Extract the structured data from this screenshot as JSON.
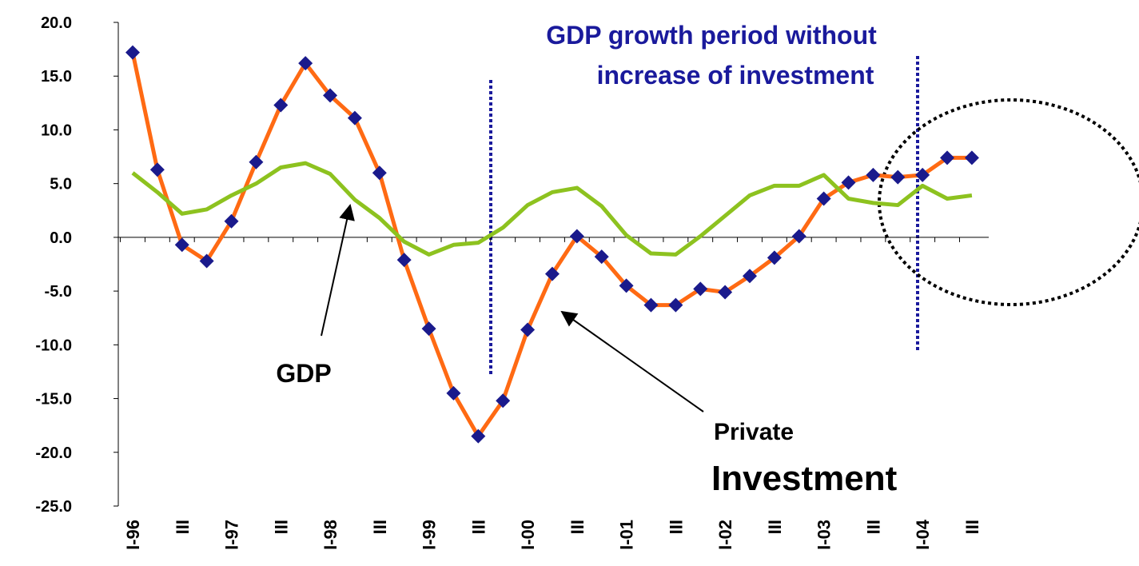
{
  "chart_data": {
    "type": "line",
    "annotations": [
      "GDP growth period without",
      "increase of investment",
      "GDP",
      "Private",
      "Investment"
    ],
    "categories": [
      "I-96",
      null,
      "III",
      null,
      "I-97",
      null,
      "III",
      null,
      "I-98",
      null,
      "III",
      null,
      "I-99",
      null,
      "III",
      null,
      "I-00",
      null,
      "III",
      null,
      "I-01",
      null,
      "III",
      null,
      "I-02",
      null,
      "III",
      null,
      "I-03",
      null,
      "III",
      null,
      "I-04",
      null,
      "III"
    ],
    "series": [
      {
        "name": "Private Investment",
        "color": "#ff6a13",
        "marker_color": "#1a1a8c",
        "values": [
          17.2,
          6.3,
          -0.7,
          -2.2,
          1.5,
          7.0,
          12.3,
          16.2,
          13.2,
          11.1,
          6.0,
          -2.1,
          -8.5,
          -14.5,
          -18.5,
          -15.2,
          -8.6,
          -3.4,
          0.1,
          -1.8,
          -4.5,
          -6.3,
          -6.3,
          -4.8,
          -5.1,
          -3.6,
          -1.9,
          0.1,
          3.6,
          5.1,
          5.8,
          5.6,
          5.8,
          7.4,
          7.4
        ]
      },
      {
        "name": "GDP",
        "color": "#8dc21f",
        "values": [
          6.0,
          4.2,
          2.2,
          2.6,
          3.9,
          5.0,
          6.5,
          6.9,
          5.9,
          3.5,
          1.8,
          -0.4,
          -1.6,
          -0.7,
          -0.5,
          0.9,
          3.0,
          4.2,
          4.6,
          2.9,
          0.2,
          -1.5,
          -1.6,
          0.1,
          2.0,
          3.9,
          4.8,
          4.8,
          5.8,
          3.6,
          3.2,
          3.0,
          4.8,
          3.6,
          3.9
        ]
      }
    ],
    "ylim": [
      -25,
      20
    ],
    "yticks": [
      {
        "value": -25,
        "label": "-25.0"
      },
      {
        "value": -20,
        "label": "-20.0"
      },
      {
        "value": -15,
        "label": "-15.0"
      },
      {
        "value": -10,
        "label": "-10.0"
      },
      {
        "value": -5,
        "label": "-5.0"
      },
      {
        "value": 0,
        "label": "0.0"
      },
      {
        "value": 5,
        "label": "5.0"
      },
      {
        "value": 10,
        "label": "10.0"
      },
      {
        "value": 15,
        "label": "15.0"
      },
      {
        "value": 20,
        "label": "20.0"
      }
    ],
    "grid": false
  }
}
